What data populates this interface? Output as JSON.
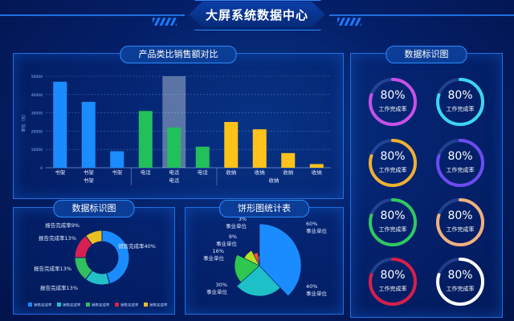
{
  "header": {
    "title": "大屏系统数据中心"
  },
  "bar_panel": {
    "title": "产品类比销售额对比"
  },
  "gauge_panel": {
    "title": "数据标识图",
    "gauges": [
      {
        "value": "80%",
        "label": "工作完成率",
        "color": "#c850e8"
      },
      {
        "value": "80%",
        "label": "工作完成率",
        "color": "#3cd6f0"
      },
      {
        "value": "80%",
        "label": "工作完成率",
        "color": "#f0b030"
      },
      {
        "value": "80%",
        "label": "工作完成率",
        "color": "#6a4cf0"
      },
      {
        "value": "80%",
        "label": "工作完成率",
        "color": "#30c860"
      },
      {
        "value": "80%",
        "label": "工作完成率",
        "color": "#f0b080"
      },
      {
        "value": "80%",
        "label": "工作完成率",
        "color": "#d81e4a"
      },
      {
        "value": "80%",
        "label": "工作完成率",
        "color": "#ffffff"
      }
    ]
  },
  "donut_panel": {
    "title": "数据标识图",
    "labels": [
      "报告完成率9%",
      "报告完成率13%",
      "报告完成率13%",
      "报告完成率13%",
      "销售完成率40%"
    ],
    "legend": [
      "销售完成率",
      "销售完成率",
      "销售完成率",
      "销售完成率",
      "销售完成率"
    ]
  },
  "pie_panel": {
    "title": "饼形图统计表",
    "labels": [
      {
        "pct": "60%",
        "name": "事业单位"
      },
      {
        "pct": "40%",
        "name": "事业单位"
      },
      {
        "pct": "30%",
        "name": "事业单位"
      },
      {
        "pct": "16%",
        "name": "事业单位"
      },
      {
        "pct": "9%",
        "name": "事业单位"
      },
      {
        "pct": "3%",
        "name": "事业单位"
      }
    ]
  },
  "chart_data": [
    {
      "type": "bar",
      "title": "产品类比销售额对比",
      "ylabel": "单位（元）",
      "ylim": [
        0,
        50000
      ],
      "yticks": [
        "0",
        "10000",
        "20000",
        "30000",
        "40000",
        "50000"
      ],
      "categories": [
        "书架",
        "书架",
        "书架",
        "电话",
        "电话",
        "电话",
        "收纳",
        "收纳",
        "收纳",
        "收纳"
      ],
      "group_labels": [
        "书架",
        "电话",
        "收纳"
      ],
      "values": [
        47000,
        36000,
        9000,
        31000,
        22000,
        11500,
        25000,
        21000,
        8000,
        2000
      ],
      "colors": [
        "#1a8cff",
        "#1a8cff",
        "#1a8cff",
        "#22c05a",
        "#22c05a",
        "#22c05a",
        "#ffc21a",
        "#ffc21a",
        "#ffc21a",
        "#ffc21a"
      ],
      "highlight_index": 4,
      "highlight_value": 50000,
      "grid": true
    },
    {
      "type": "pie",
      "variant": "donut",
      "title": "数据标识图",
      "categories": [
        "销售完成率",
        "报告完成率",
        "报告完成率",
        "报告完成率",
        "报告完成率"
      ],
      "values": [
        40,
        13,
        13,
        13,
        9
      ],
      "colors": [
        "#1a8cff",
        "#22c0c8",
        "#30c060",
        "#d82050",
        "#e8c020"
      ]
    },
    {
      "type": "pie",
      "variant": "rose",
      "title": "饼形图统计表",
      "categories": [
        "事业单位",
        "事业单位",
        "事业单位",
        "事业单位",
        "事业单位",
        "事业单位"
      ],
      "values": [
        60,
        40,
        30,
        16,
        9,
        3
      ],
      "colors": [
        "#1a8cff",
        "#1ec0c8",
        "#2ec850",
        "#b8e020",
        "#ff5030",
        "#ffb020"
      ]
    }
  ]
}
